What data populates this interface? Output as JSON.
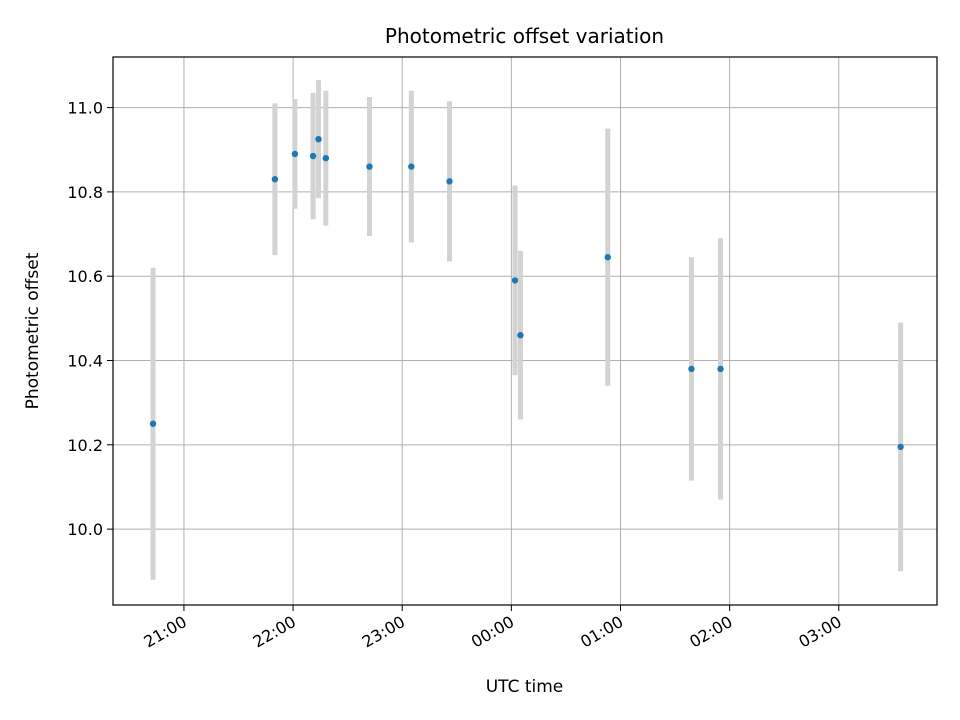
{
  "chart_data": {
    "type": "scatter",
    "title": "Photometric offset variation",
    "xlabel": "UTC time",
    "ylabel": "Photometric offset",
    "x_tick_labels": [
      "21:00",
      "22:00",
      "23:00",
      "00:00",
      "01:00",
      "02:00",
      "03:00"
    ],
    "x_tick_times": [
      "21:00",
      "22:00",
      "23:00",
      "00:00",
      "01:00",
      "02:00",
      "03:00"
    ],
    "y_tick_labels": [
      "10.0",
      "10.2",
      "10.4",
      "10.6",
      "10.8",
      "11.0"
    ],
    "y_ticks": [
      10.0,
      10.2,
      10.4,
      10.6,
      10.8,
      11.0
    ],
    "xlim": [
      "20:21",
      "03:54"
    ],
    "ylim": [
      9.82,
      11.12
    ],
    "grid": true,
    "point_color": "#1f77b4",
    "errorbar_color": "#d3d3d3",
    "points": [
      {
        "time": "20:43",
        "y": 10.25,
        "yerr": 0.37
      },
      {
        "time": "21:50",
        "y": 10.83,
        "yerr": 0.18
      },
      {
        "time": "22:01",
        "y": 10.89,
        "yerr": 0.13
      },
      {
        "time": "22:11",
        "y": 10.885,
        "yerr": 0.15
      },
      {
        "time": "22:14",
        "y": 10.925,
        "yerr": 0.14
      },
      {
        "time": "22:18",
        "y": 10.88,
        "yerr": 0.16
      },
      {
        "time": "22:42",
        "y": 10.86,
        "yerr": 0.165
      },
      {
        "time": "23:05",
        "y": 10.86,
        "yerr": 0.18
      },
      {
        "time": "23:26",
        "y": 10.825,
        "yerr": 0.19
      },
      {
        "time": "00:02",
        "y": 10.59,
        "yerr": 0.225
      },
      {
        "time": "00:05",
        "y": 10.46,
        "yerr": 0.2
      },
      {
        "time": "00:53",
        "y": 10.645,
        "yerr": 0.305
      },
      {
        "time": "01:39",
        "y": 10.38,
        "yerr": 0.265
      },
      {
        "time": "01:55",
        "y": 10.38,
        "yerr": 0.31
      },
      {
        "time": "03:34",
        "y": 10.195,
        "yerr": 0.295
      }
    ]
  }
}
